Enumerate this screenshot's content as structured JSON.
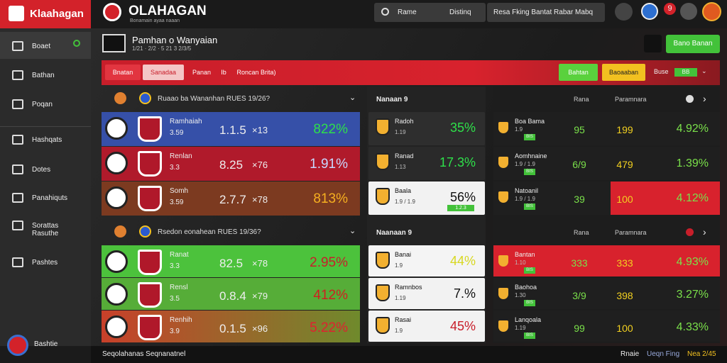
{
  "brand": "Klaahagan",
  "header": {
    "title": "OLAHAGAN",
    "subtitle": "Bonamain ayaa naaan",
    "search": [
      "Rame",
      "Distinq"
    ],
    "filter": "Resa Fking Bantat Rabar Mabq",
    "badge": "9"
  },
  "sidebar": {
    "items": [
      "Boaet",
      "Bathan",
      "Poqan",
      "Hashqats",
      "Dotes",
      "Panahiquts",
      "Sorattas Rasuthe",
      "Pashtes"
    ],
    "user": "Bashtie"
  },
  "subheader": {
    "title": "Pamhan o Wanyaian",
    "meta": "1/21 · 2/2 · 5 21 3 2/3/5",
    "button": "Bano Banan"
  },
  "tabs": [
    "Bnatan",
    "Sanadaa",
    "Panan",
    "Ib",
    "Roncan Brita)"
  ],
  "filters": {
    "green": "Bahtan",
    "yellow": "Baoaaban",
    "label": "Buse",
    "tag": "BB"
  },
  "groups": [
    {
      "header": "Ruaao ba Wananhan RUES 19/26?",
      "matches": [
        {
          "team": "Ramhaiah",
          "time": "3.59",
          "odds": "1.1.5",
          "mult": "×13",
          "pct": "822%"
        },
        {
          "team": "Renlan",
          "time": "3.3",
          "odds": "8.25",
          "mult": "×76",
          "pct": "1.91%"
        },
        {
          "team": "Somh",
          "time": "3.59",
          "odds": "2.7.7",
          "mult": "×78",
          "pct": "813%"
        }
      ]
    },
    {
      "header": "Rsedon eonahean RUES 19/36?",
      "matches": [
        {
          "team": "Ranat",
          "time": "3.3",
          "odds": "82.5",
          "mult": "×78",
          "pct": "2.95%"
        },
        {
          "team": "Rensl",
          "time": "3.5",
          "odds": "0.8.4",
          "mult": "×79",
          "pct": "412%"
        },
        {
          "team": "Renhih",
          "time": "3.9",
          "odds": "0.1.5",
          "mult": "×96",
          "pct": "5.22%"
        }
      ]
    }
  ],
  "middle": [
    {
      "header": "Nanaan 9",
      "rows": [
        {
          "name": "Radoh",
          "sub": "1.19",
          "pct": "35%"
        },
        {
          "name": "Ranad",
          "sub": "1.13",
          "pct": "17.3%"
        },
        {
          "name": "Baala",
          "sub": "1.9 / 1.9",
          "pct": "56%",
          "tag": "1.2.3"
        }
      ]
    },
    {
      "header": "Naanaan 9",
      "rows": [
        {
          "name": "Banai",
          "sub": "1.9",
          "pct": "44%"
        },
        {
          "name": "Ramnbos",
          "sub": "1.19",
          "pct": "7.%"
        },
        {
          "name": "Rasai",
          "sub": "1.9",
          "pct": "45%"
        }
      ]
    }
  ],
  "right": [
    {
      "cols": [
        "Rana",
        "Paramnara"
      ],
      "rows": [
        {
          "name": "Boa Bama",
          "sub": "1.9",
          "tag": "BIS",
          "a": "95",
          "b": "199",
          "pct": "4.92%"
        },
        {
          "name": "Aomhnaine",
          "sub": "1.9 / 1.9",
          "tag": "BIS",
          "a": "6/9",
          "b": "479",
          "pct": "1.39%"
        },
        {
          "name": "Natoanil",
          "sub": "1.9 / 1.9",
          "tag": "BIS",
          "a": "39",
          "b": "100",
          "pct": "4.12%"
        }
      ]
    },
    {
      "cols": [
        "Rana",
        "Paramnara"
      ],
      "rows": [
        {
          "name": "Bantan",
          "sub": "1.10",
          "tag": "BIS",
          "a": "333",
          "b": "333",
          "pct": "4.93%"
        },
        {
          "name": "Baohoa",
          "sub": "1.30",
          "tag": "BIS",
          "a": "3/9",
          "b": "398",
          "pct": "3.27%"
        },
        {
          "name": "Lanqoala",
          "sub": "1.19",
          "tag": "BIS",
          "a": "99",
          "b": "100",
          "pct": "4.33%"
        }
      ]
    }
  ],
  "footer": {
    "left": "Seqolahanas Seqnanatnel",
    "right": [
      "Rnaie",
      "Ueqn Fing",
      "Nea 2/45"
    ]
  }
}
